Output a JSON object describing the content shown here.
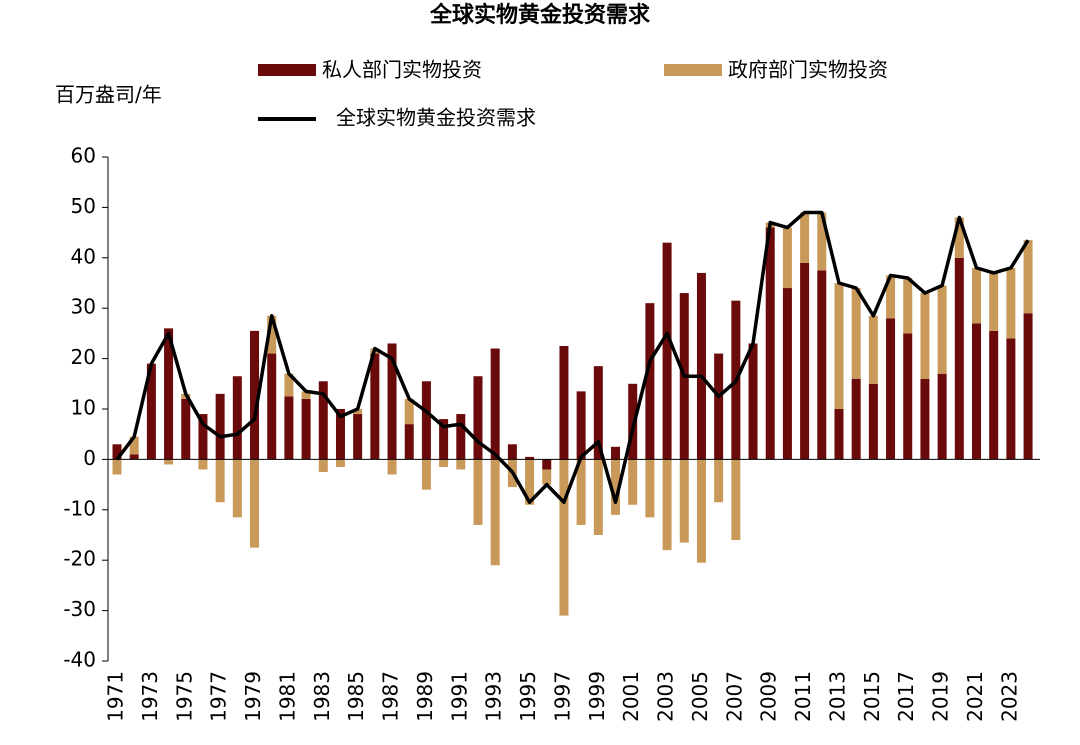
{
  "chart_data": {
    "type": "bar-line",
    "title": "全球实物黄金投资需求",
    "y_label": "百万盎司/年",
    "categories": [
      "1971",
      null,
      "1973",
      null,
      "1975",
      null,
      "1977",
      null,
      "1979",
      null,
      "1981",
      null,
      "1983",
      null,
      "1985",
      null,
      "1987",
      null,
      "1989",
      null,
      "1991",
      null,
      "1993",
      null,
      "1995",
      null,
      "1997",
      null,
      "1999",
      null,
      "2001",
      null,
      "2003",
      null,
      "2005",
      null,
      "2007",
      null,
      "2009",
      null,
      "2011",
      null,
      "2013",
      null,
      "2015",
      null,
      "2017",
      null,
      "2019",
      null,
      "2021",
      null,
      "2023",
      null
    ],
    "series": [
      {
        "name": "私人部门实物投资",
        "kind": "bar",
        "color": "#6b0a0a",
        "values": [
          3,
          1,
          19,
          26,
          12,
          9,
          13,
          16.5,
          25.5,
          21,
          12.5,
          12,
          15.5,
          10,
          9,
          21,
          23,
          7,
          15.5,
          8,
          9,
          16.5,
          22,
          3,
          0.5,
          -2,
          22.5,
          13.5,
          18.5,
          2.5,
          15,
          31,
          43,
          33,
          37,
          21,
          31.5,
          23,
          46,
          34,
          39,
          37.5,
          10,
          16,
          15,
          28,
          25,
          16,
          17,
          40,
          27,
          25.5,
          24,
          29
        ]
      },
      {
        "name": "政府部门实物投资",
        "kind": "bar",
        "color": "#c9995a",
        "values": [
          -3,
          3.5,
          0,
          -1,
          1,
          -2,
          -8.5,
          -11.5,
          -17.5,
          7.5,
          4.5,
          1.5,
          -2.5,
          -1.5,
          1,
          1,
          -3,
          5,
          -6,
          -1.5,
          -2,
          -13,
          -21,
          -5.5,
          -9,
          -3,
          -31,
          -13,
          -15,
          -11,
          -9,
          -11.5,
          -18,
          -16.5,
          -20.5,
          -8.5,
          -16,
          0,
          1,
          12,
          10,
          11.5,
          25,
          18,
          13.5,
          8.5,
          11,
          17,
          17.5,
          8,
          11,
          11.5,
          14,
          14.5
        ]
      },
      {
        "name": "全球实物黄金投资需求",
        "kind": "line",
        "color": "#000000",
        "values": [
          0,
          4.5,
          19,
          25,
          13,
          7,
          4.5,
          5,
          8,
          28.5,
          17,
          13.5,
          13,
          8.5,
          10,
          22,
          20,
          12,
          9.5,
          6.5,
          7,
          3.5,
          1,
          -2.5,
          -8.5,
          -5,
          -8.5,
          0.5,
          3.5,
          -8.5,
          6,
          19.5,
          25,
          16.5,
          16.5,
          12.5,
          15.5,
          23,
          47,
          46,
          49,
          49,
          35,
          34,
          28.5,
          36.5,
          36,
          33,
          34.5,
          48,
          38,
          37,
          38,
          43.5
        ]
      }
    ],
    "ylim": [
      -40,
      60
    ],
    "yticks": [
      -40,
      -30,
      -20,
      -10,
      0,
      10,
      20,
      30,
      40,
      50,
      60
    ]
  }
}
